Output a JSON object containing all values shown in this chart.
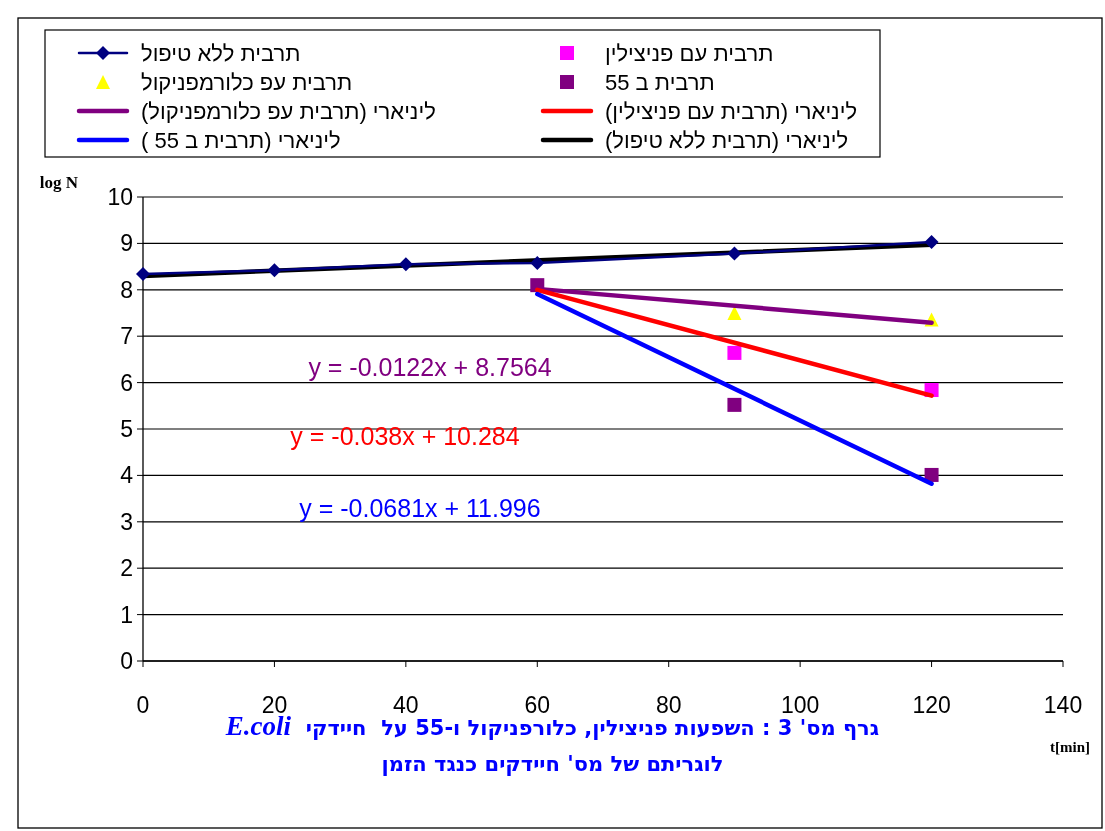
{
  "chart_data": {
    "type": "scatter",
    "title": "גרף מס' 3 : השפעות פניצילין, כלורפניקול ו-55 על  חיידקי  *E.coli*",
    "subtitle": "לוגריתם של מס' חיידקים כנגד הזמן",
    "xlabel": "t[min]",
    "ylabel": "log N",
    "xlim": [
      0,
      140
    ],
    "xticks": [
      0,
      20,
      40,
      60,
      80,
      100,
      120,
      140
    ],
    "ylim": [
      0,
      10
    ],
    "yticks": [
      0,
      1,
      2,
      3,
      4,
      5,
      6,
      7,
      8,
      9,
      10
    ],
    "grid": "y",
    "legend": "top",
    "series": [
      {
        "name": "תרבית ללא טיפול",
        "type": "line",
        "marker": "diamond",
        "color": "#000080",
        "x": [
          0,
          20,
          40,
          60,
          90,
          120
        ],
        "values": [
          8.34,
          8.42,
          8.55,
          8.58,
          8.78,
          9.03
        ]
      },
      {
        "name": "תרבית עם פניצילין",
        "marker": "square",
        "color": "#ff00ff",
        "x": [
          90,
          120
        ],
        "values": [
          6.64,
          5.84
        ]
      },
      {
        "name": "תרבית עפ כלורמפניקול",
        "marker": "triangle",
        "color": "#ffff00",
        "x": [
          90,
          120
        ],
        "values": [
          7.5,
          7.36
        ]
      },
      {
        "name": "תרבית ב 55",
        "marker": "square",
        "color": "#800080",
        "x": [
          60,
          90,
          120
        ],
        "values": [
          8.1,
          5.52,
          4.01
        ]
      },
      {
        "name": "ליניארי (תרבית עפ כלורמפניקול)",
        "type": "line",
        "marker": "none",
        "color": "#800080",
        "x": [
          60,
          120
        ],
        "values": [
          8.02,
          7.29
        ]
      },
      {
        "name": "ליניארי (תרבית עם פניצילין)",
        "type": "line",
        "marker": "none",
        "color": "#ff0000",
        "x": [
          60,
          120
        ],
        "values": [
          8.0,
          5.72
        ]
      },
      {
        "name": "ליניארי (תרבית ב 55 )",
        "type": "line",
        "marker": "none",
        "color": "#0000ff",
        "x": [
          60,
          120
        ],
        "values": [
          7.91,
          3.82
        ]
      },
      {
        "name": "ליניארי (תרבית ללא טיפול)",
        "type": "line",
        "marker": "none",
        "color": "#000000",
        "x": [
          0,
          120
        ],
        "values": [
          8.3,
          8.97
        ]
      }
    ],
    "annotations": [
      "y = -0.0122x + 8.7564",
      "y = -0.038x + 10.284",
      "y = -0.0681x + 11.996"
    ]
  }
}
